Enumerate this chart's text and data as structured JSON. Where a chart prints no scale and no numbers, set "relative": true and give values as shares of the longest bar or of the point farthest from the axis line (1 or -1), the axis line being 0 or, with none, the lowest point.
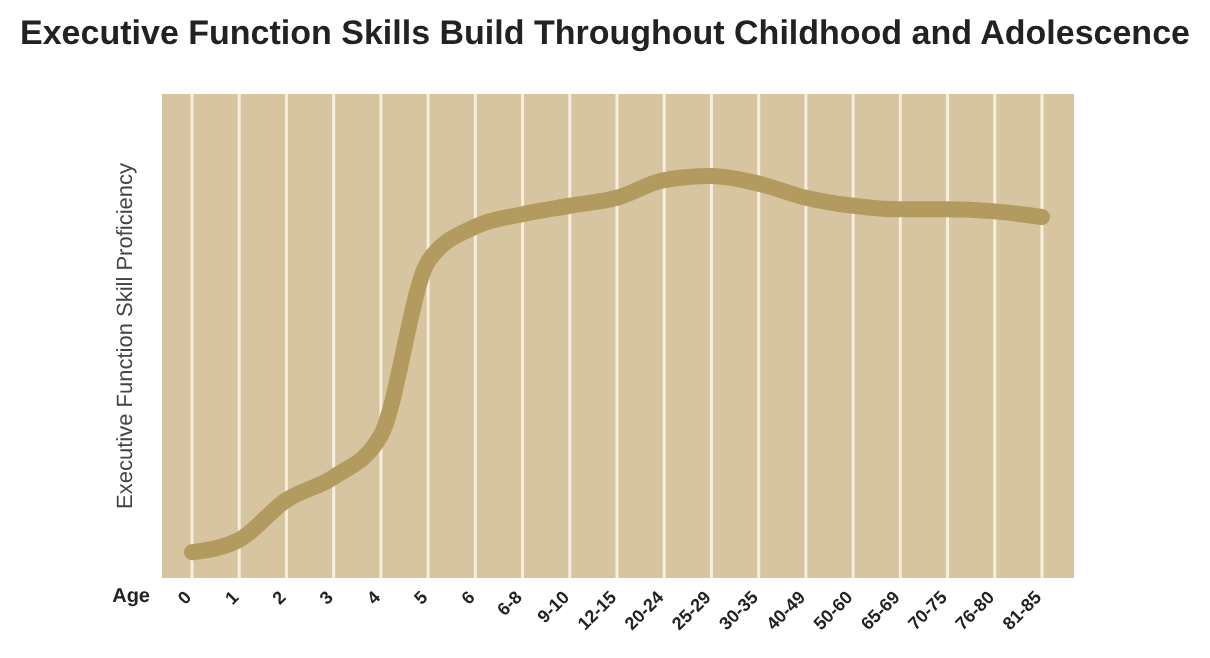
{
  "chart_data": {
    "type": "line",
    "title": "Executive Function Skills Build Throughout Childhood and Adolescence",
    "xlabel": "Age",
    "ylabel": "Executive Function Skill Proficiency",
    "relative": true,
    "grid": "x",
    "marker": "none",
    "line_style": "solid",
    "categories": [
      "0",
      "1",
      "2",
      "3",
      "4",
      "5",
      "6",
      "6-8",
      "9-10",
      "12-15",
      "20-24",
      "25-29",
      "30-35",
      "40-49",
      "50-60",
      "65-69",
      "70-75",
      "76-80",
      "81-85"
    ],
    "series": [
      {
        "color": "#b39a5e",
        "values": [
          0.064,
          0.095,
          0.194,
          0.251,
          0.355,
          0.787,
          0.874,
          0.905,
          0.926,
          0.946,
          0.99,
          1,
          0.981,
          0.946,
          0.926,
          0.917,
          0.917,
          0.912,
          0.898
        ]
      }
    ]
  }
}
